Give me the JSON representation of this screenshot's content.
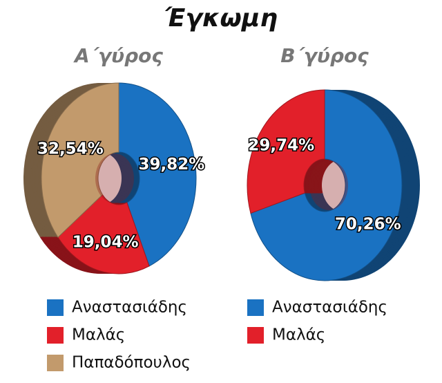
{
  "title": "Έγκωμη",
  "chart_data": [
    {
      "type": "donut",
      "title": "Α΄γύρος",
      "categories": [
        "Αναστασιάδης",
        "Μαλάς",
        "Παπαδόπουλος"
      ],
      "values": [
        39.82,
        19.04,
        32.54
      ],
      "value_labels": [
        "39,82%",
        "19,04%",
        "32,54%"
      ],
      "colors": [
        "#1a72c2",
        "#e2202a",
        "#c29a6c"
      ],
      "depth": "left",
      "legend": "bottom"
    },
    {
      "type": "donut",
      "title": "Β΄γύρος",
      "categories": [
        "Αναστασιάδης",
        "Μαλάς"
      ],
      "values": [
        70.26,
        29.74
      ],
      "value_labels": [
        "70,26%",
        "29,74%"
      ],
      "colors": [
        "#1a72c2",
        "#e2202a"
      ],
      "depth": "right",
      "legend": "bottom"
    }
  ]
}
